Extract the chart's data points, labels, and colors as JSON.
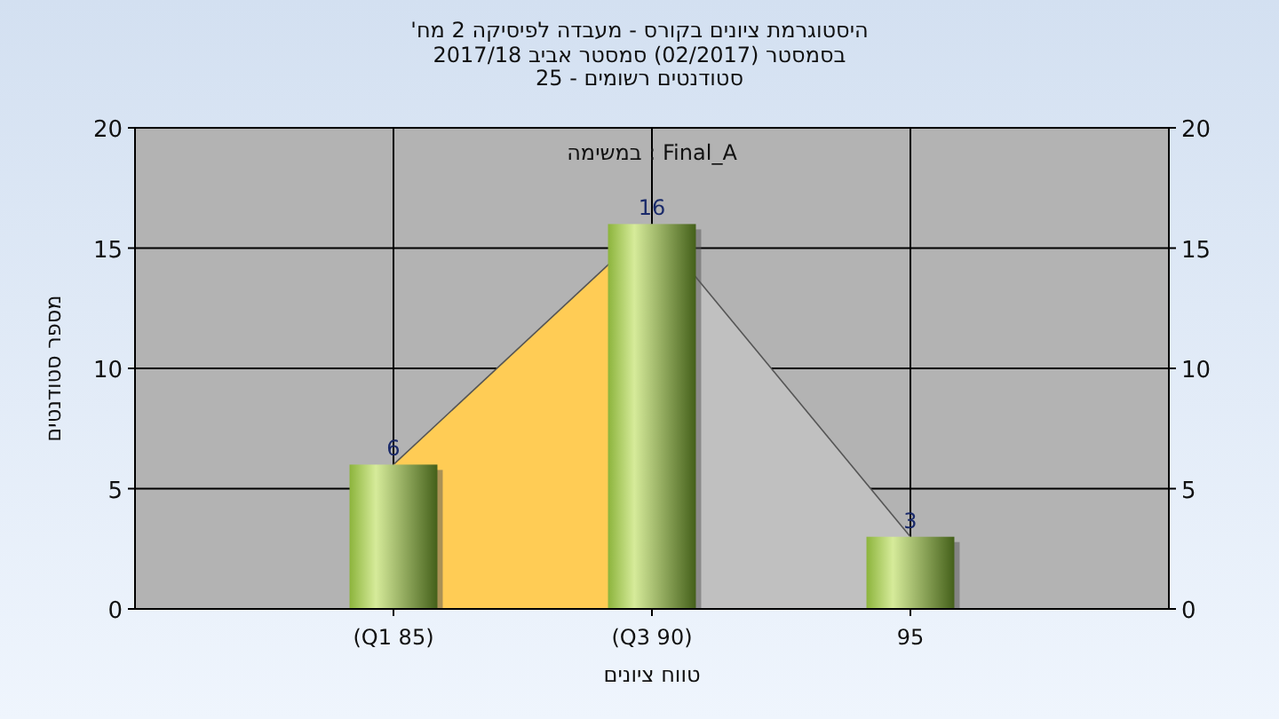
{
  "chart_data": {
    "type": "bar",
    "title": "היסטוגרמת ציונים בקורס - מעבדה לפיסיקה 2 מח'",
    "subtitle": [
      "בסמסטר (02/2017) סמסטר אביב 2017/18",
      "סטודנטים רשומים - 25"
    ],
    "xlabel": "טווח ציונים",
    "ylabel": "מספר סטודנטים",
    "annotations": [
      "במשימה : Final_A"
    ],
    "categories": [
      "(Q1 85)",
      "(Q3 90)",
      "95"
    ],
    "series": [
      {
        "type": "area",
        "color": "#ffcc55",
        "values": [
          6,
          16,
          null
        ]
      },
      {
        "type": "area",
        "color": "#c0c0c0",
        "values": [
          null,
          16,
          3
        ]
      },
      {
        "color": "#8cb43c",
        "values": [
          6,
          16,
          3
        ],
        "value_labels": [
          "6",
          "16",
          "3"
        ]
      }
    ],
    "ylim": [
      0,
      20
    ],
    "yticks": [
      0,
      5,
      10,
      15,
      20
    ],
    "y2lim": [
      0,
      20
    ],
    "y2ticks": [
      0,
      5,
      10,
      15,
      20
    ],
    "grid": true
  }
}
